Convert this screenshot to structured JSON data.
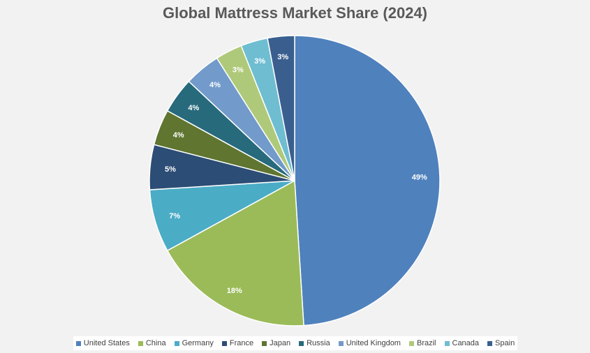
{
  "chart_data": {
    "type": "pie",
    "title": "Global Mattress Market Share (2024)",
    "labels": [
      "United States",
      "China",
      "Germany",
      "France",
      "Japan",
      "Russia",
      "United Kingdom",
      "Brazil",
      "Canada",
      "Spain"
    ],
    "values": [
      49,
      18,
      7,
      5,
      4,
      4,
      4,
      3,
      3,
      3
    ],
    "value_labels": [
      "49%",
      "18%",
      "7%",
      "5%",
      "4%",
      "4%",
      "4%",
      "3%",
      "3%",
      "3%"
    ],
    "colors": [
      "#4f81bd",
      "#9bbb59",
      "#4bacc6",
      "#2c4d75",
      "#5f7530",
      "#276a7c",
      "#729aca",
      "#afc97a",
      "#6fbdd1",
      "#3a5f8f"
    ],
    "legend_position": "bottom",
    "start_angle_deg": 0,
    "direction": "clockwise"
  }
}
